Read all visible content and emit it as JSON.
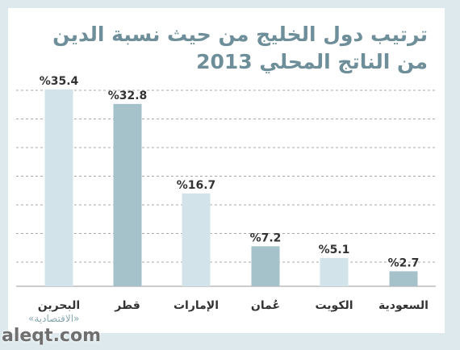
{
  "chart_data": {
    "type": "bar",
    "title": "ترتيب دول الخليج من حيث نسبة الدين من الناتج المحلي 2013",
    "categories": [
      "البحرين",
      "قطر",
      "الإمارات",
      "عُمان",
      "الكويت",
      "السعودية"
    ],
    "values": [
      35.4,
      32.8,
      16.7,
      7.2,
      5.1,
      2.7
    ],
    "value_labels": [
      "%35.4",
      "%32.8",
      "%16.7",
      "%7.2",
      "%5.1",
      "%2.7"
    ],
    "ylim": [
      0,
      38
    ],
    "grid": true,
    "colors": {
      "light_bar": "#d2e3e9",
      "dark_bar": "#a5c2cb",
      "title": "#6e8f99",
      "label": "#333333"
    }
  },
  "credit": "«الاقتصادية»",
  "watermark": "aleqt.com"
}
